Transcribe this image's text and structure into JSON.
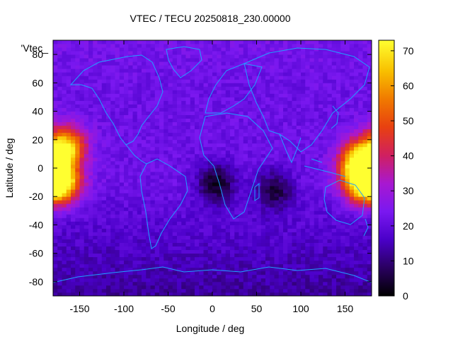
{
  "chart_data": {
    "type": "heatmap",
    "title": "VTEC / TECU 20250818_230.00000",
    "xlabel": "Longitude / deg",
    "ylabel": "Latitude / deg",
    "key_label": "'Vtec_",
    "xlim": [
      -180,
      180
    ],
    "ylim": [
      -90,
      90
    ],
    "x_ticks": [
      -150,
      -100,
      -50,
      0,
      50,
      100,
      150
    ],
    "y_ticks": [
      -80,
      -60,
      -40,
      -20,
      0,
      20,
      40,
      60,
      80
    ],
    "colorbar_range": [
      0,
      73
    ],
    "colorbar_ticks": [
      0,
      10,
      20,
      30,
      40,
      50,
      60,
      70
    ],
    "colormap": [
      "#000000",
      "#2a0060",
      "#4a00c8",
      "#7a18f0",
      "#a818d0",
      "#d02060",
      "#e84010",
      "#f07a00",
      "#f8c000",
      "#ffff30"
    ],
    "coastline_color": "#1fa0ff",
    "grid": false,
    "field_description_hotspots": [
      {
        "lon": -165,
        "lat": 15,
        "value": 66
      },
      {
        "lon": -170,
        "lat": -10,
        "value": 68
      },
      {
        "lon": 165,
        "lat": 5,
        "value": 66
      },
      {
        "lon": 170,
        "lat": -10,
        "value": 70
      },
      {
        "lon": 5,
        "lat": -10,
        "value": 3
      },
      {
        "lon": 70,
        "lat": -15,
        "value": 6
      }
    ]
  }
}
